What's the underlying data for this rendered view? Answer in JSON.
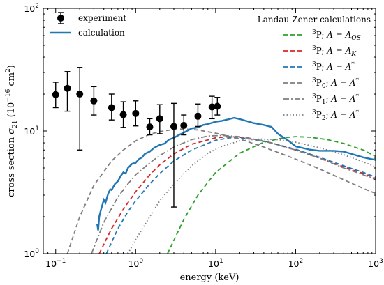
{
  "chart_data": {
    "type": "line",
    "xlabel": "energy (keV)",
    "ylabel": "cross section σ21 (10−16 cm2)",
    "ylabel_parts": {
      "pre": "cross section ",
      "sym": "σ",
      "sub": "21",
      "mid": " (10",
      "exp": "−16",
      "unit": " cm",
      "unit_exp": "2",
      "close": ")"
    },
    "xscale": "log",
    "yscale": "log",
    "xlim": [
      0.07,
      1000
    ],
    "ylim": [
      1,
      100
    ],
    "x_ticks": [
      {
        "value": 0.1,
        "base": "10",
        "exp": "−1"
      },
      {
        "value": 1,
        "base": "10",
        "exp": "0"
      },
      {
        "value": 10,
        "base": "10",
        "exp": "1"
      },
      {
        "value": 100,
        "base": "10",
        "exp": "2"
      },
      {
        "value": 1000,
        "base": "10",
        "exp": "3"
      }
    ],
    "y_ticks": [
      {
        "value": 1,
        "base": "10",
        "exp": "0"
      },
      {
        "value": 10,
        "base": "10",
        "exp": "1"
      },
      {
        "value": 100,
        "base": "10",
        "exp": "2"
      }
    ],
    "legend_left": {
      "placement": "top-left",
      "entries": [
        {
          "label": "experiment",
          "kind": "marker"
        },
        {
          "label": "calculation",
          "kind": "line"
        }
      ]
    },
    "legend_right": {
      "placement": "top-right",
      "title": "Landau-Zener calculations",
      "entries": [
        {
          "state": "3P",
          "state_sup": "3",
          "state_base": "P",
          "state_sub": "",
          "a_sub": "OS",
          "a_star": false,
          "series": 0
        },
        {
          "state": "3P",
          "state_sup": "3",
          "state_base": "P",
          "state_sub": "",
          "a_sub": "K",
          "a_star": false,
          "series": 1
        },
        {
          "state": "3P",
          "state_sup": "3",
          "state_base": "P",
          "state_sub": "",
          "a_sub": "",
          "a_star": true,
          "series": 2
        },
        {
          "state": "3P0",
          "state_sup": "3",
          "state_base": "P",
          "state_sub": "0",
          "a_sub": "",
          "a_star": true,
          "series": 3
        },
        {
          "state": "3P1",
          "state_sup": "3",
          "state_base": "P",
          "state_sub": "1",
          "a_sub": "",
          "a_star": true,
          "series": 4
        },
        {
          "state": "3P2",
          "state_sup": "3",
          "state_base": "P",
          "state_sub": "2",
          "a_sub": "",
          "a_star": true,
          "series": 5
        }
      ]
    },
    "experiment": {
      "name": "experiment",
      "points": [
        {
          "x": 0.1,
          "y": 19.8,
          "ylo": 15.5,
          "yhi": 25.0
        },
        {
          "x": 0.14,
          "y": 22.3,
          "ylo": 14.5,
          "yhi": 30.5
        },
        {
          "x": 0.2,
          "y": 20.0,
          "ylo": 7.0,
          "yhi": 33.0
        },
        {
          "x": 0.3,
          "y": 17.6,
          "ylo": 13.5,
          "yhi": 23.0
        },
        {
          "x": 0.5,
          "y": 15.5,
          "ylo": 12.3,
          "yhi": 20.0
        },
        {
          "x": 0.7,
          "y": 13.6,
          "ylo": 10.7,
          "yhi": 17.3
        },
        {
          "x": 1.0,
          "y": 13.9,
          "ylo": 11.0,
          "yhi": 17.6
        },
        {
          "x": 1.5,
          "y": 10.8,
          "ylo": 9.3,
          "yhi": 12.6
        },
        {
          "x": 2.0,
          "y": 12.6,
          "ylo": 9.5,
          "yhi": 16.4
        },
        {
          "x": 3.0,
          "y": 10.9,
          "ylo": 2.4,
          "yhi": 16.8
        },
        {
          "x": 4.0,
          "y": 11.1,
          "ylo": 9.3,
          "yhi": 13.5
        },
        {
          "x": 6.0,
          "y": 13.2,
          "ylo": 10.9,
          "yhi": 16.6
        },
        {
          "x": 9.0,
          "y": 15.7,
          "ylo": 12.6,
          "yhi": 19.2
        },
        {
          "x": 10.5,
          "y": 15.9,
          "ylo": 13.5,
          "yhi": 18.8
        }
      ]
    },
    "calculation": {
      "name": "calculation",
      "color": "#1f77b4",
      "points": [
        [
          0.33,
          1.75
        ],
        [
          0.34,
          1.55
        ],
        [
          0.35,
          2.0
        ],
        [
          0.37,
          2.3
        ],
        [
          0.4,
          2.75
        ],
        [
          0.42,
          2.6
        ],
        [
          0.45,
          3.05
        ],
        [
          0.48,
          3.35
        ],
        [
          0.5,
          3.3
        ],
        [
          0.55,
          3.7
        ],
        [
          0.6,
          3.9
        ],
        [
          0.65,
          4.3
        ],
        [
          0.7,
          4.6
        ],
        [
          0.75,
          4.5
        ],
        [
          0.8,
          5.0
        ],
        [
          0.9,
          5.4
        ],
        [
          1.0,
          5.5
        ],
        [
          1.1,
          5.9
        ],
        [
          1.2,
          6.1
        ],
        [
          1.3,
          6.5
        ],
        [
          1.5,
          6.8
        ],
        [
          1.7,
          7.3
        ],
        [
          2.0,
          7.7
        ],
        [
          2.3,
          7.9
        ],
        [
          2.6,
          8.5
        ],
        [
          3.0,
          8.8
        ],
        [
          3.5,
          9.3
        ],
        [
          4.0,
          9.7
        ],
        [
          4.5,
          10.1
        ],
        [
          5.0,
          10.5
        ],
        [
          6.0,
          10.7
        ],
        [
          7.0,
          11.2
        ],
        [
          8.0,
          11.4
        ],
        [
          10.0,
          11.9
        ],
        [
          12.0,
          12.1
        ],
        [
          14.0,
          12.4
        ],
        [
          17.0,
          12.8
        ],
        [
          20.0,
          12.5
        ],
        [
          25.0,
          12.0
        ],
        [
          30.0,
          11.6
        ],
        [
          40.0,
          11.2
        ],
        [
          50.0,
          10.8
        ],
        [
          60.0,
          9.5
        ],
        [
          80.0,
          8.4
        ],
        [
          100.0,
          7.5
        ],
        [
          150.0,
          7.05
        ],
        [
          200.0,
          6.9
        ],
        [
          300.0,
          6.9
        ],
        [
          400.0,
          6.8
        ],
        [
          500.0,
          6.5
        ],
        [
          700.0,
          6.1
        ],
        [
          1000.0,
          5.8
        ]
      ]
    },
    "landau_zener": [
      {
        "name": "3P; A=AOS",
        "color": "#2ca02c",
        "style": "dashed",
        "points": [
          [
            2.5,
            1.0
          ],
          [
            4,
            1.9
          ],
          [
            6,
            3.0
          ],
          [
            10,
            4.6
          ],
          [
            20,
            6.6
          ],
          [
            40,
            8.1
          ],
          [
            70,
            8.8
          ],
          [
            100,
            9.0
          ],
          [
            150,
            8.9
          ],
          [
            250,
            8.5
          ],
          [
            400,
            7.9
          ],
          [
            700,
            7.0
          ],
          [
            1000,
            6.2
          ]
        ]
      },
      {
        "name": "3P; A=AK",
        "color": "#d62728",
        "style": "dashed",
        "points": [
          [
            0.35,
            1.0
          ],
          [
            0.5,
            1.6
          ],
          [
            0.7,
            2.3
          ],
          [
            1.0,
            3.2
          ],
          [
            1.5,
            4.4
          ],
          [
            2,
            5.3
          ],
          [
            3,
            6.5
          ],
          [
            5,
            7.8
          ],
          [
            10,
            8.8
          ],
          [
            15,
            9.0
          ],
          [
            25,
            8.8
          ],
          [
            50,
            8.0
          ],
          [
            100,
            7.0
          ],
          [
            200,
            6.0
          ],
          [
            400,
            5.1
          ],
          [
            700,
            4.5
          ],
          [
            1000,
            4.1
          ]
        ]
      },
      {
        "name": "3P; A=A*",
        "color": "#1f77b4",
        "style": "dashed",
        "points": [
          [
            0.43,
            1.0
          ],
          [
            0.6,
            1.6
          ],
          [
            0.8,
            2.2
          ],
          [
            1.0,
            2.7
          ],
          [
            1.5,
            3.7
          ],
          [
            2,
            4.5
          ],
          [
            3,
            5.7
          ],
          [
            5,
            7.0
          ],
          [
            10,
            8.4
          ],
          [
            15,
            8.8
          ],
          [
            25,
            8.7
          ],
          [
            50,
            8.0
          ],
          [
            100,
            7.1
          ],
          [
            200,
            6.1
          ],
          [
            400,
            5.2
          ],
          [
            700,
            4.6
          ],
          [
            1000,
            4.2
          ]
        ]
      },
      {
        "name": "3P0; A=A*",
        "color": "#7f7f7f",
        "style": "dashed",
        "points": [
          [
            0.14,
            1.0
          ],
          [
            0.2,
            2.0
          ],
          [
            0.3,
            3.6
          ],
          [
            0.5,
            5.7
          ],
          [
            0.7,
            7.0
          ],
          [
            1.0,
            8.3
          ],
          [
            1.5,
            9.4
          ],
          [
            2,
            9.9
          ],
          [
            3,
            10.3
          ],
          [
            4,
            10.4
          ],
          [
            6,
            10.2
          ],
          [
            10,
            9.6
          ],
          [
            20,
            8.6
          ],
          [
            40,
            7.4
          ],
          [
            100,
            5.9
          ],
          [
            200,
            4.9
          ],
          [
            400,
            4.0
          ],
          [
            700,
            3.4
          ],
          [
            1000,
            3.1
          ]
        ]
      },
      {
        "name": "3P1; A=A*",
        "color": "#7f7f7f",
        "style": "dashdot",
        "points": [
          [
            0.28,
            1.0
          ],
          [
            0.4,
            1.8
          ],
          [
            0.6,
            2.9
          ],
          [
            0.8,
            3.7
          ],
          [
            1.0,
            4.4
          ],
          [
            1.5,
            5.5
          ],
          [
            2,
            6.3
          ],
          [
            3,
            7.4
          ],
          [
            5,
            8.5
          ],
          [
            8,
            9.1
          ],
          [
            12,
            9.2
          ],
          [
            20,
            9.0
          ],
          [
            40,
            8.3
          ],
          [
            100,
            7.0
          ],
          [
            200,
            6.0
          ],
          [
            400,
            5.0
          ],
          [
            700,
            4.4
          ],
          [
            1000,
            4.0
          ]
        ]
      },
      {
        "name": "3P2; A=A*",
        "color": "#7f7f7f",
        "style": "dotted",
        "points": [
          [
            0.8,
            1.0
          ],
          [
            1.0,
            1.3
          ],
          [
            1.5,
            2.0
          ],
          [
            2,
            2.7
          ],
          [
            3,
            3.7
          ],
          [
            5,
            5.2
          ],
          [
            8,
            6.6
          ],
          [
            12,
            7.5
          ],
          [
            20,
            8.3
          ],
          [
            35,
            8.6
          ],
          [
            60,
            8.5
          ],
          [
            100,
            8.1
          ],
          [
            200,
            7.3
          ],
          [
            400,
            6.4
          ],
          [
            700,
            5.6
          ],
          [
            1000,
            5.1
          ]
        ]
      }
    ]
  }
}
